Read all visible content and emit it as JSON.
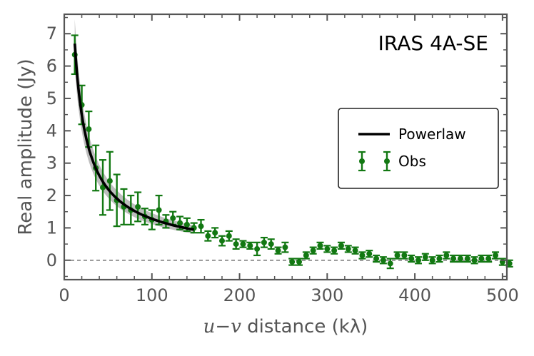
{
  "chart_data": {
    "type": "scatter",
    "title": "",
    "annotation": "IRAS 4A-SE",
    "xlabel": {
      "var": "u−v",
      "unit": "distance (kλ)"
    },
    "ylabel": "Real amplitude (Jy)",
    "xlim": [
      0,
      505
    ],
    "ylim": [
      -0.6,
      7.6
    ],
    "xticks": [
      0,
      100,
      200,
      300,
      400,
      500
    ],
    "yticks": [
      0,
      1,
      2,
      3,
      4,
      5,
      6,
      7
    ],
    "reference_line": {
      "y": 0,
      "style": "dashed"
    },
    "legend": {
      "position": "center-right",
      "entries": [
        "Powerlaw",
        "Obs"
      ]
    },
    "colors": {
      "obs": "#127812",
      "fit": "#000000",
      "band": "#b3b3b3",
      "axis": "#555555"
    },
    "series": [
      {
        "name": "Obs",
        "kind": "errorbar",
        "x": [
          12,
          20,
          28,
          36,
          44,
          52,
          60,
          68,
          76,
          84,
          92,
          100,
          108,
          116,
          124,
          132,
          140,
          148,
          156,
          164,
          172,
          180,
          188,
          196,
          204,
          212,
          220,
          228,
          236,
          244,
          252,
          260,
          268,
          276,
          284,
          292,
          300,
          308,
          316,
          324,
          332,
          340,
          348,
          356,
          364,
          372,
          380,
          388,
          396,
          404,
          412,
          420,
          428,
          436,
          444,
          452,
          460,
          468,
          476,
          484,
          492,
          500,
          508
        ],
        "y": [
          6.35,
          4.8,
          4.05,
          2.85,
          2.25,
          2.45,
          1.85,
          1.65,
          1.55,
          1.65,
          1.35,
          1.25,
          1.55,
          1.2,
          1.3,
          1.15,
          1.1,
          1.0,
          1.05,
          0.75,
          0.85,
          0.6,
          0.75,
          0.5,
          0.5,
          0.45,
          0.35,
          0.55,
          0.5,
          0.3,
          0.4,
          -0.05,
          -0.05,
          0.15,
          0.3,
          0.45,
          0.35,
          0.3,
          0.45,
          0.35,
          0.3,
          0.15,
          0.2,
          0.05,
          0.0,
          -0.1,
          0.15,
          0.15,
          0.05,
          0.0,
          0.1,
          0.0,
          0.05,
          0.15,
          0.05,
          0.05,
          0.05,
          0.0,
          0.05,
          0.05,
          0.15,
          -0.05,
          -0.1
        ],
        "err": [
          0.6,
          0.6,
          0.55,
          0.7,
          0.85,
          0.9,
          0.8,
          0.55,
          0.45,
          0.45,
          0.25,
          0.3,
          0.45,
          0.2,
          0.2,
          0.2,
          0.2,
          0.15,
          0.2,
          0.15,
          0.15,
          0.15,
          0.15,
          0.15,
          0.1,
          0.1,
          0.2,
          0.15,
          0.15,
          0.1,
          0.15,
          0.1,
          0.1,
          0.1,
          0.1,
          0.1,
          0.1,
          0.1,
          0.1,
          0.1,
          0.1,
          0.1,
          0.1,
          0.1,
          0.1,
          0.15,
          0.1,
          0.1,
          0.1,
          0.1,
          0.1,
          0.1,
          0.1,
          0.1,
          0.1,
          0.1,
          0.1,
          0.1,
          0.1,
          0.1,
          0.1,
          0.1,
          0.1
        ]
      },
      {
        "name": "Powerlaw",
        "kind": "line",
        "model": "y = 46.5 * x^-0.78",
        "x_range": [
          12,
          148
        ],
        "amplitude": 46.5,
        "index": -0.78,
        "uncertainty_band": {
          "amplitude_range": [
            42.5,
            50.5
          ],
          "index_range": [
            -0.79,
            -0.77
          ]
        }
      }
    ]
  }
}
